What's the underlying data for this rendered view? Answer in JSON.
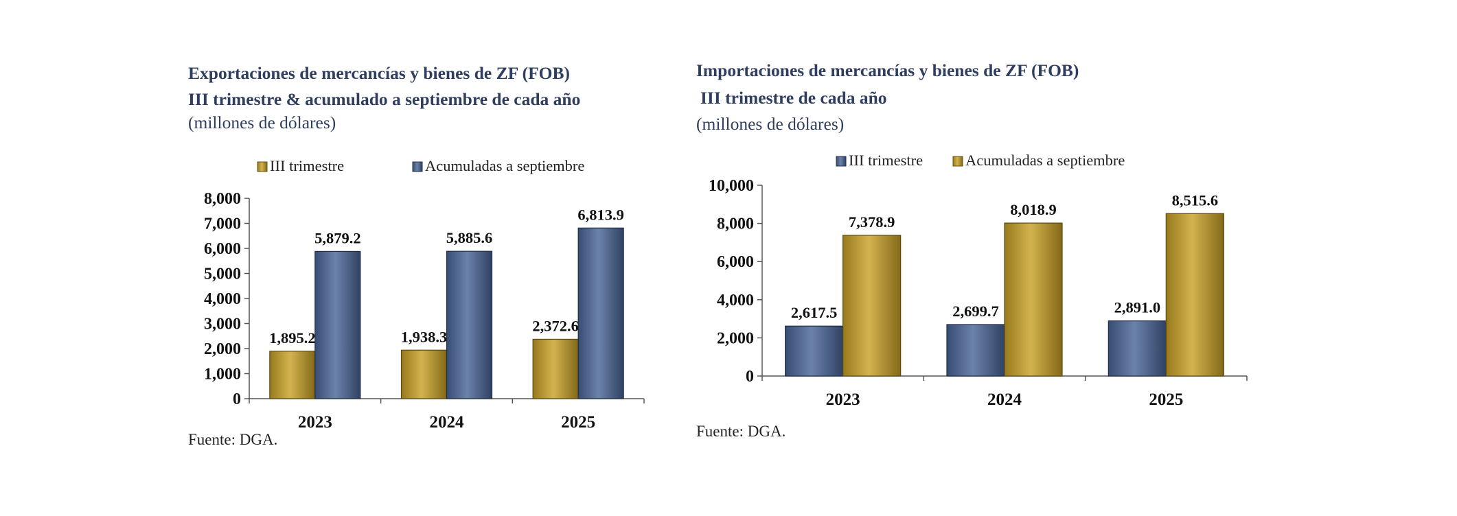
{
  "chart_data": [
    {
      "type": "bar",
      "title": "Exportaciones de mercancías y bienes de ZF (FOB)",
      "title_line2": "III trimestre & acumulado a septiembre de cada año",
      "subtitle": "(millones de dólares)",
      "source": "Fuente: DGA.",
      "categories": [
        "2023",
        "2024",
        "2025"
      ],
      "ylim": [
        0,
        8000
      ],
      "yticks": [
        "0",
        "1,000",
        "2,000",
        "3,000",
        "4,000",
        "5,000",
        "6,000",
        "7,000",
        "8,000"
      ],
      "ytick_values": [
        0,
        1000,
        2000,
        3000,
        4000,
        5000,
        6000,
        7000,
        8000
      ],
      "legend_position": "top",
      "series": [
        {
          "name": "III trimestre",
          "color": "#c9a227",
          "values": [
            1895.2,
            1938.3,
            2372.6
          ],
          "labels": [
            "1,895.2",
            "1,938.3",
            "2,372.6"
          ]
        },
        {
          "name": "Acumuladas a septiembre",
          "color": "#4a6699",
          "values": [
            5879.2,
            5885.6,
            6813.9
          ],
          "labels": [
            "5,879.2",
            "5,885.6",
            "6,813.9"
          ]
        }
      ]
    },
    {
      "type": "bar",
      "title": "Importaciones de mercancías y bienes de ZF (FOB)",
      "title_line2": "III trimestre de cada año",
      "subtitle": "(millones de dólares)",
      "source": "Fuente: DGA.",
      "categories": [
        "2023",
        "2024",
        "2025"
      ],
      "ylim": [
        0,
        10000
      ],
      "yticks": [
        "0",
        "2,000",
        "4,000",
        "6,000",
        "8,000",
        "10,000"
      ],
      "ytick_values": [
        0,
        2000,
        4000,
        6000,
        8000,
        10000
      ],
      "legend_position": "top",
      "series": [
        {
          "name": "III trimestre",
          "color": "#4a6699",
          "values": [
            2617.5,
            2699.7,
            2891.0
          ],
          "labels": [
            "2,617.5",
            "2,699.7",
            "2,891.0"
          ]
        },
        {
          "name": "Acumuladas a septiembre",
          "color": "#c9a227",
          "values": [
            7378.9,
            8018.9,
            8515.6
          ],
          "labels": [
            "7,378.9",
            "8,018.9",
            "8,515.6"
          ]
        }
      ]
    }
  ]
}
